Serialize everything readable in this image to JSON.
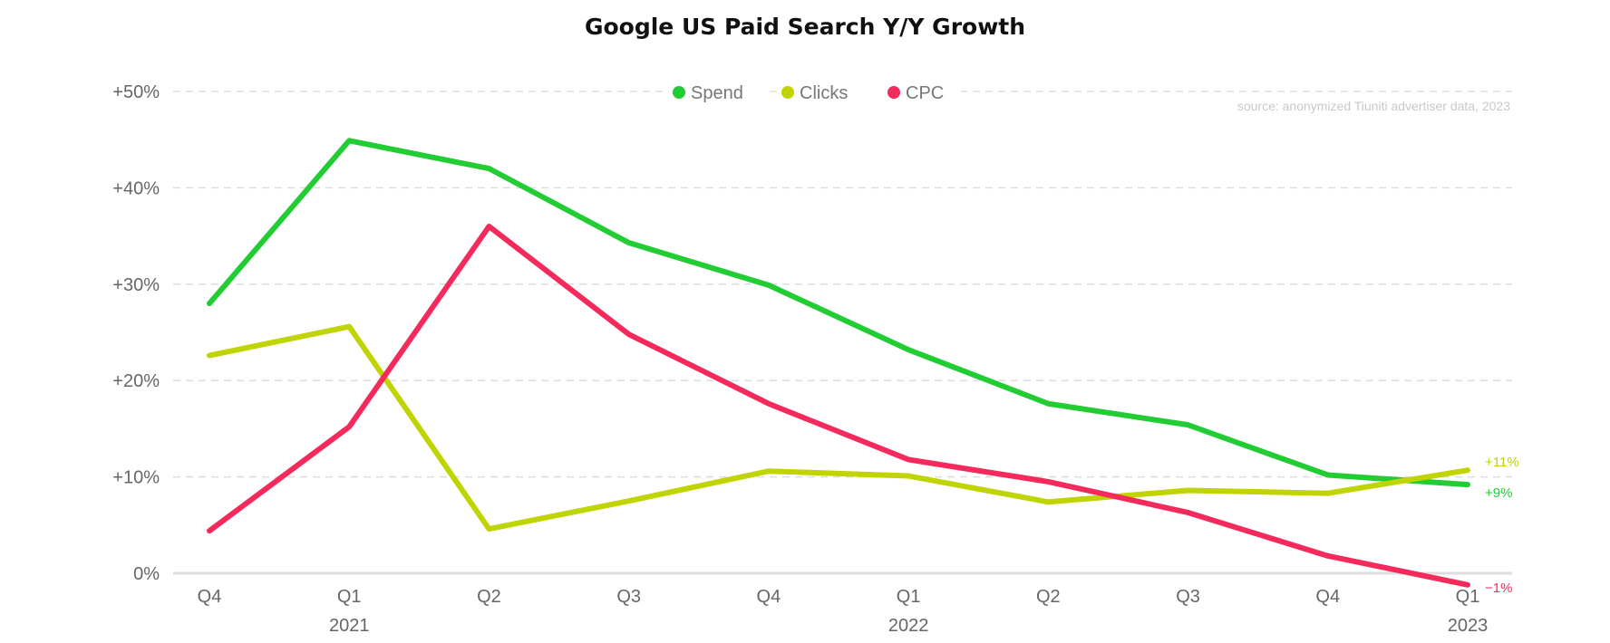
{
  "chart_data": {
    "type": "line",
    "title": "Google US Paid Search Y/Y Growth",
    "source_note": "source: anonymized Tiuniti advertiser data, 2023",
    "categories": [
      "Q4",
      "Q1",
      "Q2",
      "Q3",
      "Q4",
      "Q1",
      "Q2",
      "Q3",
      "Q4",
      "Q1"
    ],
    "year_labels": [
      {
        "index": 1,
        "label": "2021"
      },
      {
        "index": 5,
        "label": "2022"
      },
      {
        "index": 9,
        "label": "2023"
      }
    ],
    "ylim": [
      0,
      50
    ],
    "yticks": [
      0,
      10,
      20,
      30,
      40,
      50
    ],
    "ytick_labels": [
      "0%",
      "+10%",
      "+20%",
      "+30%",
      "+40%",
      "+50%"
    ],
    "grid": true,
    "legend_position": "top-center",
    "series": [
      {
        "name": "Spend",
        "color": "#22cc33",
        "values": [
          28.0,
          44.9,
          42.0,
          34.3,
          29.9,
          23.2,
          17.6,
          15.4,
          10.2,
          9.2
        ],
        "end_label": "+9%"
      },
      {
        "name": "Clicks",
        "color": "#bfd400",
        "values": [
          22.6,
          25.6,
          4.6,
          7.5,
          10.6,
          10.1,
          7.4,
          8.6,
          8.3,
          10.7
        ],
        "end_label": "+11%"
      },
      {
        "name": "CPC",
        "color": "#f52a5c",
        "values": [
          4.4,
          15.2,
          36.0,
          24.8,
          17.6,
          11.8,
          9.5,
          6.3,
          1.8,
          -1.2
        ],
        "end_label": "−1%"
      }
    ]
  }
}
